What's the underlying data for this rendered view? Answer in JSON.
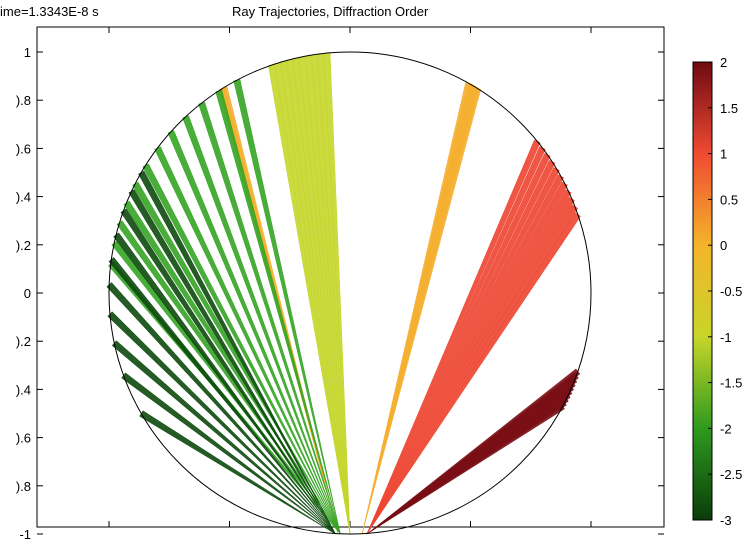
{
  "header": {
    "time_text": "ime=1.3343E-8 s",
    "title": "Ray Trajectories, Diffraction Order"
  },
  "chart_data": {
    "type": "line",
    "title": "Ray Trajectories, Diffraction Order",
    "xlabel": "",
    "ylabel": "",
    "ylim": [
      -1.05,
      1.05
    ],
    "xlim": [
      -1.4,
      1.4
    ],
    "y_ticks": [
      1,
      0.8,
      0.6,
      0.4,
      0.2,
      0,
      -0.2,
      -0.4,
      -0.6,
      -0.8,
      -1
    ],
    "y_tick_labels": [
      "1",
      ").8",
      ").6",
      ").4",
      ").2",
      "0",
      ").2",
      ").4",
      ").6",
      ").8",
      "-1"
    ],
    "x_ticks": [
      -1,
      -0.5,
      0,
      0.5,
      1
    ],
    "grid": false,
    "boundary": {
      "shape": "circle",
      "center": [
        0,
        0
      ],
      "radius": 1,
      "color": "#000000"
    },
    "color_legend": {
      "placement": "right",
      "min": -3,
      "max": 2,
      "ticks": [
        2,
        1.5,
        1,
        0.5,
        0,
        -0.5,
        -1,
        -1.5,
        -2,
        -2.5,
        -3
      ],
      "tick_labels": [
        "2",
        "1.5",
        "1",
        "0.5",
        "0",
        "-0.5",
        "-1",
        "-1.5",
        "-2",
        "-2.5",
        "-3"
      ],
      "colors": [
        "#0a3d0a",
        "#2e9a1e",
        "#c8d52a",
        "#f4b42a",
        "#ef4a32",
        "#6e0a12"
      ]
    },
    "series": [
      {
        "order": 2,
        "color": "#7a0f16",
        "origin": [
          0.07,
          -1.0
        ],
        "end_angles": [
          -19,
          -20,
          -21,
          -22,
          -23,
          -24,
          -25,
          -26,
          -27,
          -28
        ]
      },
      {
        "order": 1,
        "color": "#ed4430",
        "origin": [
          0.07,
          -1.0
        ],
        "end_angles": [
          39,
          37,
          35,
          33,
          31,
          29,
          27,
          25,
          23,
          21,
          19
        ]
      },
      {
        "order": 0,
        "color": "#f5b032",
        "origin": [
          0.05,
          -1.0
        ],
        "end_angles": [
          60.5,
          60.0,
          59.5,
          59.0,
          58.5,
          58.0
        ]
      },
      {
        "order": 0,
        "color": "#f5b032",
        "origin": [
          -0.05,
          -1.0
        ],
        "end_angles": [
          121.5,
          122
        ]
      },
      {
        "order": -1,
        "color": "#c4d62a",
        "origin": [
          0.0,
          -1.0
        ],
        "end_angles": [
          95.5,
          97,
          98.5,
          100,
          101.5,
          103,
          104.5,
          106,
          107.5,
          109
        ]
      },
      {
        "order": -2,
        "color": "#34a423",
        "origin": [
          -0.04,
          -1.0
        ],
        "end_angles": [
          118,
          123,
          128,
          133,
          138,
          143,
          148,
          153,
          158,
          163,
          168,
          173
        ]
      },
      {
        "order": -3,
        "color": "#0d4a0e",
        "origin": [
          -0.06,
          -1.0
        ],
        "end_angles": [
          150,
          155,
          160,
          166,
          172,
          178,
          185,
          192,
          200,
          210
        ]
      }
    ]
  }
}
